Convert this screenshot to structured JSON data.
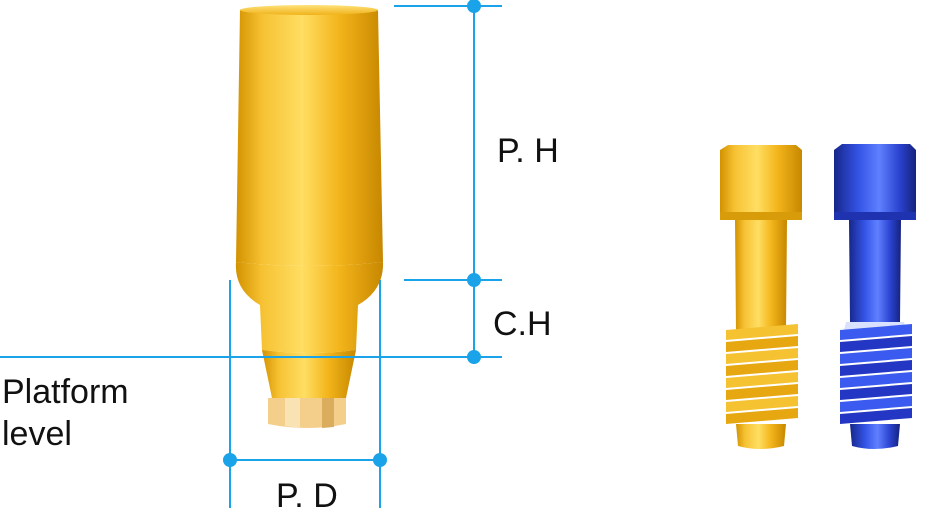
{
  "labels": {
    "ph": "P. H",
    "ch": "C.H",
    "pd": "P. D",
    "platform_line1": "Platform",
    "platform_line2": "level"
  },
  "colors": {
    "dimension": "#1aa3e8",
    "gold_light": "#ffd24a",
    "gold_mid": "#f2b319",
    "gold_dark": "#c98a00",
    "blue_light": "#5a7cff",
    "blue_mid": "#2a44d8",
    "blue_dark": "#162a8f"
  },
  "icons": [
    "gold-abutment",
    "gold-screw",
    "blue-screw"
  ]
}
